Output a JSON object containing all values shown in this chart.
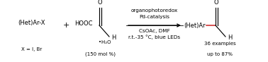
{
  "bg_color": "#ffffff",
  "reactant1_text": "(Het)Ar-X",
  "reactant1_sub": "X = I, Br",
  "plus_text": "+",
  "reactant2_hooc": "HOOC",
  "reactant2_water": "•H₂O",
  "reactant2_mol": "(150 mol %)",
  "arrow_above1": "organophotoredox",
  "arrow_above2": "Pd-catalysis",
  "arrow_below1": "CsOAc, DMF",
  "arrow_below2": "r.t.-35 °C, blue LEDs",
  "product_aryl": "(Het)Ar",
  "product_sub1": "36 examples",
  "product_sub2": "up to 87%",
  "red_bond_color": "#cc2222"
}
